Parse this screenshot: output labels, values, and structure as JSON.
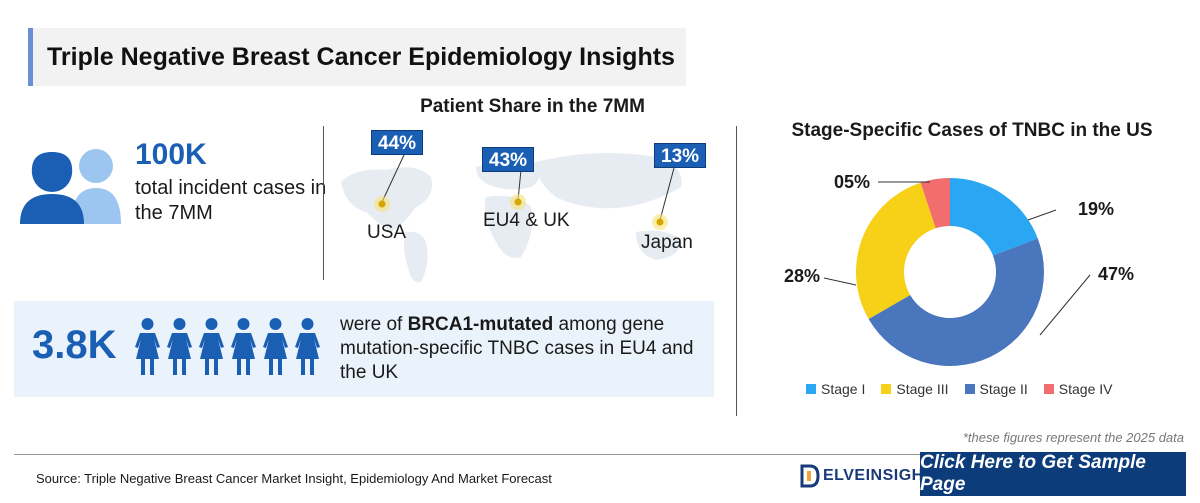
{
  "header": {
    "title": "Triple Negative Breast Cancer Epidemiology Insights"
  },
  "incident": {
    "value": "100K",
    "description": "total incident cases in the 7MM"
  },
  "map": {
    "title": "Patient Share in the 7MM",
    "regions": [
      {
        "name": "USA",
        "share": "44%"
      },
      {
        "name": "EU4 & UK",
        "share": "43%"
      },
      {
        "name": "Japan",
        "share": "13%"
      }
    ]
  },
  "brca": {
    "value": "3.8K",
    "text_before": "were of ",
    "text_bold": "BRCA1-mutated",
    "text_after": " among gene mutation-specific TNBC cases in EU4 and the UK"
  },
  "chart_data": {
    "type": "pie",
    "title": "Stage-Specific Cases of TNBC in the US",
    "categories": [
      "Stage I",
      "Stage II",
      "Stage III",
      "Stage IV"
    ],
    "values": [
      19,
      47,
      28,
      5
    ],
    "labels": [
      "19%",
      "47%",
      "28%",
      "05%"
    ],
    "colors": [
      "#2aa6f3",
      "#4a76be",
      "#f7d117",
      "#f26d6d"
    ],
    "legend_order": [
      "Stage I",
      "Stage III",
      "Stage II",
      "Stage IV"
    ],
    "legend_placement": "bottom"
  },
  "footnote": "*these figures represent the 2025 data",
  "footer": {
    "source": "Source: Triple Negative Breast Cancer Market Insight, Epidemiology And Market Forecast",
    "logo_text": "ELVEINSIGHT",
    "logo_initial": "D",
    "cta_label": "Click Here to Get Sample Page"
  }
}
